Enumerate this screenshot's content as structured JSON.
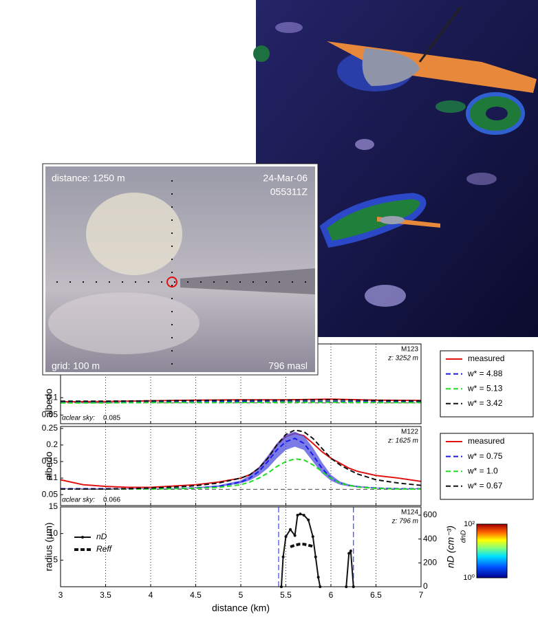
{
  "camera_view": {
    "distance": "distance: 1250 m",
    "date": "24-Mar-06",
    "time": "055311Z",
    "grid": "grid: 100 m",
    "altitude": "796 masl"
  },
  "chart_data": [
    {
      "type": "line",
      "ylabel": "albedo",
      "tag": "M123",
      "altitude_label": "z: 3252 m",
      "xlim": [
        3,
        7
      ],
      "xticks": [
        3,
        3.5,
        4,
        4.5,
        5,
        5.5,
        6,
        6.5,
        7
      ],
      "show_x_tick_labels": false,
      "ylim": [
        0.025,
        0.255
      ],
      "yticks": [
        0.05,
        0.1
      ],
      "grid": true,
      "legend": "outside-right",
      "clear_sky_label": "αclear sky:",
      "clear_sky": 0.085,
      "x": [
        3,
        3.5,
        4,
        4.5,
        5,
        5.5,
        6,
        6.5,
        7
      ],
      "series": [
        {
          "name": "measured",
          "color": "#e01010",
          "dashed": false,
          "values": [
            0.088,
            0.089,
            0.091,
            0.093,
            0.094,
            0.094,
            0.096,
            0.093,
            0.092
          ]
        },
        {
          "name": "w* = 4.88",
          "color": "#1a1aee",
          "dashed": true,
          "values": [
            0.087,
            0.087,
            0.088,
            0.088,
            0.089,
            0.089,
            0.089,
            0.088,
            0.088
          ]
        },
        {
          "name": "w* = 5.13",
          "color": "#22dd22",
          "dashed": true,
          "values": [
            0.085,
            0.085,
            0.086,
            0.086,
            0.086,
            0.087,
            0.087,
            0.086,
            0.086
          ]
        },
        {
          "name": "w* = 3.42",
          "color": "#111111",
          "dashed": true,
          "values": [
            0.09,
            0.09,
            0.091,
            0.092,
            0.093,
            0.093,
            0.094,
            0.092,
            0.091
          ]
        }
      ]
    },
    {
      "type": "line",
      "ylabel": "albedo",
      "tag": "M122",
      "altitude_label": "z: 1625 m",
      "xlim": [
        3,
        7
      ],
      "xticks": [
        3,
        3.5,
        4,
        4.5,
        5,
        5.5,
        6,
        6.5,
        7
      ],
      "show_x_tick_labels": false,
      "ylim": [
        0.017,
        0.256
      ],
      "yticks": [
        0.05,
        0.1,
        0.15,
        0.2,
        0.25
      ],
      "grid": true,
      "legend": "outside-right",
      "clear_sky_label": "αclear sky:",
      "clear_sky": 0.066,
      "x": [
        3,
        3.25,
        3.5,
        3.75,
        4,
        4.25,
        4.5,
        4.75,
        5,
        5.1,
        5.2,
        5.3,
        5.4,
        5.5,
        5.6,
        5.7,
        5.8,
        5.9,
        6,
        6.1,
        6.2,
        6.3,
        6.5,
        6.75,
        7
      ],
      "series": [
        {
          "name": "measured",
          "color": "#e01010",
          "dashed": false,
          "values": [
            0.095,
            0.08,
            0.075,
            0.072,
            0.072,
            0.076,
            0.08,
            0.088,
            0.1,
            0.11,
            0.13,
            0.16,
            0.2,
            0.225,
            0.235,
            0.228,
            0.205,
            0.18,
            0.16,
            0.145,
            0.13,
            0.12,
            0.108,
            0.1,
            0.09
          ]
        },
        {
          "name": "w* = 0.75",
          "color": "#1a1aee",
          "dashed": true,
          "band_color": "#5050dd",
          "values": [
            0.068,
            0.068,
            0.068,
            0.068,
            0.068,
            0.069,
            0.07,
            0.075,
            0.088,
            0.1,
            0.12,
            0.15,
            0.185,
            0.21,
            0.22,
            0.205,
            0.17,
            0.13,
            0.1,
            0.085,
            0.078,
            0.074,
            0.07,
            0.068,
            0.068
          ],
          "lower": [
            0.067,
            0.067,
            0.067,
            0.067,
            0.067,
            0.068,
            0.069,
            0.073,
            0.084,
            0.093,
            0.108,
            0.13,
            0.16,
            0.185,
            0.195,
            0.185,
            0.15,
            0.115,
            0.092,
            0.08,
            0.075,
            0.072,
            0.069,
            0.067,
            0.067
          ],
          "upper": [
            0.069,
            0.069,
            0.069,
            0.069,
            0.069,
            0.07,
            0.072,
            0.078,
            0.093,
            0.108,
            0.133,
            0.168,
            0.205,
            0.232,
            0.24,
            0.228,
            0.192,
            0.148,
            0.11,
            0.09,
            0.081,
            0.076,
            0.071,
            0.069,
            0.069
          ]
        },
        {
          "name": "w* = 1.0",
          "color": "#22dd22",
          "dashed": true,
          "values": [
            0.067,
            0.067,
            0.067,
            0.067,
            0.067,
            0.068,
            0.069,
            0.072,
            0.08,
            0.088,
            0.1,
            0.115,
            0.135,
            0.15,
            0.158,
            0.155,
            0.14,
            0.12,
            0.1,
            0.085,
            0.078,
            0.073,
            0.069,
            0.067,
            0.067
          ]
        },
        {
          "name": "w* = 0.67",
          "color": "#111111",
          "dashed": true,
          "values": [
            0.067,
            0.067,
            0.067,
            0.068,
            0.07,
            0.073,
            0.077,
            0.085,
            0.1,
            0.11,
            0.13,
            0.16,
            0.2,
            0.232,
            0.245,
            0.24,
            0.22,
            0.19,
            0.16,
            0.14,
            0.125,
            0.112,
            0.095,
            0.085,
            0.078
          ]
        }
      ]
    },
    {
      "type": "line",
      "ylabel": "radius (µm)",
      "y2label": "nD (cm⁻³)",
      "xlabel": "distance (km)",
      "tag": "M124",
      "altitude_label": "z: 796 m",
      "xlim": [
        3,
        7
      ],
      "xticks": [
        3,
        3.5,
        4,
        4.5,
        5,
        5.5,
        6,
        6.5,
        7
      ],
      "show_x_tick_labels": true,
      "ylim": [
        0,
        15
      ],
      "yticks": [
        5,
        10,
        15
      ],
      "y2lim": [
        0,
        669
      ],
      "y2ticks": [
        0,
        200,
        400,
        600
      ],
      "grid": true,
      "legend": "upper-left",
      "cloud_edges": [
        5.42,
        6.25
      ],
      "edge_color": "#3344ee",
      "colorbar": {
        "label": "dnD",
        "lim": [
          1,
          100
        ],
        "ticks": [
          {
            "value": 100,
            "label": "10²"
          },
          {
            "value": 1,
            "label": "10⁰"
          }
        ]
      },
      "series": [
        {
          "name": "nD",
          "color": "#111111",
          "dashed": false,
          "marker": "dot",
          "axis": "y2",
          "x": [
            5.45,
            5.47,
            5.5,
            5.55,
            5.6,
            5.63,
            5.66,
            5.7,
            5.75,
            5.8,
            5.83,
            5.86,
            5.88,
            6.0,
            6.17,
            6.2,
            6.22,
            6.25
          ],
          "values": [
            0,
            250,
            420,
            480,
            430,
            600,
            610,
            600,
            560,
            420,
            250,
            80,
            0,
            null,
            0,
            280,
            300,
            0
          ]
        },
        {
          "name": "Reff",
          "color": "#111111",
          "dashed": true,
          "thick": true,
          "x": [
            5.55,
            5.6,
            5.65,
            5.7,
            5.75,
            5.8
          ],
          "values": [
            7.5,
            7.8,
            8,
            8,
            7.8,
            7.6
          ]
        }
      ]
    }
  ]
}
